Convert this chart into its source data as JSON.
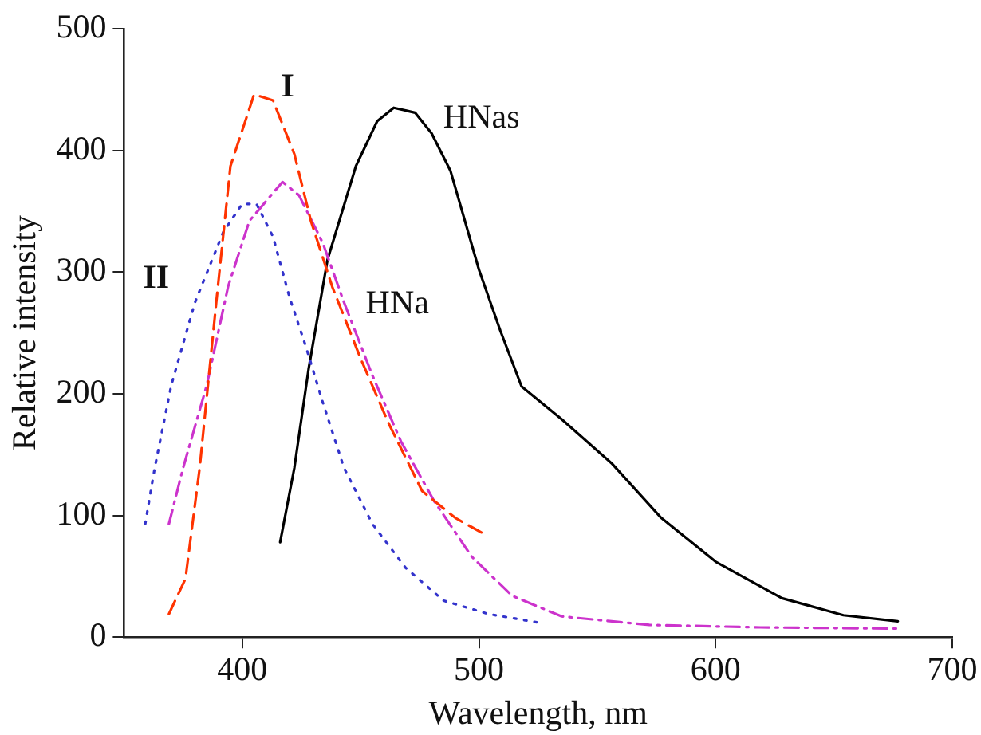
{
  "chart_data": {
    "type": "line",
    "xlabel": "Wavelength, nm",
    "ylabel": "Relative intensity",
    "xlim": [
      350,
      700
    ],
    "xticks": [
      400,
      500,
      600,
      700
    ],
    "ylim": [
      0,
      500
    ],
    "yticks": [
      0,
      100,
      200,
      300,
      400,
      500
    ],
    "grid": false,
    "legend": false,
    "marker": "none",
    "series": [
      {
        "name": "I",
        "color": "#ff3300",
        "line_style": "dashed",
        "x": [
          369,
          376,
          382,
          389,
          395,
          405,
          413,
          422,
          429,
          438,
          450,
          462,
          476,
          490,
          501
        ],
        "values": [
          19,
          48,
          139,
          275,
          387,
          446,
          441,
          397,
          342,
          288,
          229,
          175,
          120,
          98,
          86
        ]
      },
      {
        "name": "II",
        "color": "#3333cc",
        "line_style": "dotted",
        "x": [
          359,
          363,
          370,
          380,
          392,
          400,
          406,
          413,
          420,
          427,
          434,
          443,
          455,
          469,
          485,
          504,
          525
        ],
        "values": [
          93,
          139,
          207,
          275,
          333,
          356,
          356,
          329,
          279,
          238,
          193,
          139,
          93,
          57,
          30,
          19,
          12
        ]
      },
      {
        "name": "HNa",
        "color": "#cc33cc",
        "line_style": "dashdot",
        "x": [
          369,
          375,
          385,
          394,
          403,
          413,
          417,
          424,
          434,
          443,
          455,
          467,
          481,
          497,
          514,
          535,
          572,
          619,
          678
        ],
        "values": [
          93,
          139,
          207,
          288,
          342,
          365,
          374,
          363,
          324,
          275,
          215,
          161,
          112,
          66,
          34,
          17,
          10,
          8,
          7
        ]
      },
      {
        "name": "HNas",
        "color": "#000000",
        "line_style": "solid",
        "x": [
          416,
          422,
          428,
          436,
          448,
          457,
          464,
          473,
          480,
          488,
          500,
          509,
          518,
          535,
          556,
          577,
          600,
          628,
          654,
          677
        ],
        "values": [
          78,
          139,
          220,
          310,
          387,
          424,
          435,
          431,
          414,
          383,
          302,
          252,
          206,
          179,
          143,
          98,
          62,
          32,
          18,
          13
        ]
      }
    ]
  }
}
